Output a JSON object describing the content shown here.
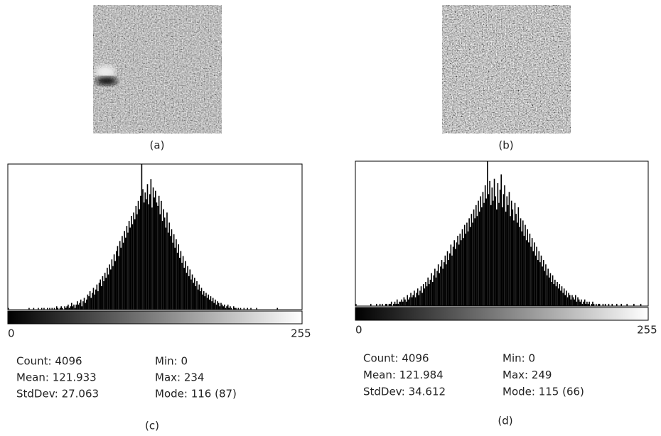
{
  "figure": {
    "images": [
      {
        "caption": "(a)"
      },
      {
        "caption": "(b)"
      }
    ]
  },
  "chart_data": [
    {
      "type": "histogram",
      "caption": "(c)",
      "color": "#000000",
      "xlim": [
        0,
        255
      ],
      "xticks": [
        0,
        255
      ],
      "ylim": [
        0,
        87
      ],
      "values": [
        1,
        0,
        0,
        0,
        0,
        0,
        0,
        0,
        0,
        0,
        0,
        0,
        0,
        0,
        0,
        0,
        0,
        0,
        1,
        0,
        0,
        0,
        1,
        0,
        0,
        0,
        1,
        0,
        0,
        1,
        0,
        1,
        0,
        0,
        1,
        0,
        1,
        0,
        1,
        0,
        1,
        0,
        2,
        1,
        0,
        1,
        2,
        1,
        0,
        2,
        1,
        2,
        3,
        1,
        2,
        4,
        2,
        3,
        1,
        3,
        5,
        3,
        4,
        6,
        2,
        5,
        7,
        4,
        6,
        9,
        8,
        11,
        7,
        10,
        13,
        9,
        12,
        15,
        11,
        16,
        18,
        14,
        20,
        17,
        22,
        19,
        25,
        21,
        27,
        24,
        30,
        26,
        33,
        29,
        35,
        38,
        32,
        41,
        37,
        44,
        40,
        47,
        43,
        50,
        46,
        53,
        49,
        56,
        51,
        58,
        54,
        62,
        57,
        65,
        60,
        68,
        87,
        72,
        64,
        70,
        66,
        75,
        63,
        69,
        78,
        61,
        73,
        67,
        71,
        64,
        62,
        68,
        57,
        65,
        53,
        60,
        55,
        49,
        58,
        46,
        52,
        44,
        48,
        40,
        45,
        37,
        42,
        34,
        39,
        31,
        35,
        28,
        32,
        25,
        29,
        22,
        26,
        20,
        24,
        18,
        21,
        16,
        19,
        14,
        17,
        12,
        15,
        11,
        13,
        9,
        11,
        8,
        10,
        7,
        9,
        6,
        8,
        5,
        7,
        4,
        6,
        3,
        5,
        4,
        2,
        4,
        3,
        2,
        3,
        1,
        2,
        3,
        1,
        2,
        1,
        0,
        2,
        1,
        1,
        0,
        1,
        0,
        1,
        0,
        0,
        1,
        0,
        0,
        1,
        0,
        0,
        1,
        0,
        0,
        0,
        0,
        1,
        0,
        0,
        0,
        0,
        0,
        0,
        0,
        0,
        0,
        0,
        0,
        0,
        0,
        0,
        0,
        0,
        0,
        1,
        0,
        0,
        0,
        0,
        0,
        0,
        0,
        0,
        0,
        0,
        0,
        0,
        0,
        0,
        0,
        0,
        0,
        0,
        0,
        0,
        0
      ],
      "stats": [
        "Count: 4096",
        "Mean: 121.933",
        "StdDev: 27.063",
        "Min: 0",
        "Max: 234",
        "Mode: 116 (87)"
      ]
    },
    {
      "type": "histogram",
      "caption": "(d)",
      "color": "#000000",
      "xlim": [
        0,
        255
      ],
      "xticks": [
        0,
        255
      ],
      "ylim": [
        0,
        66
      ],
      "values": [
        1,
        0,
        0,
        0,
        0,
        0,
        0,
        0,
        0,
        0,
        0,
        0,
        0,
        1,
        0,
        0,
        0,
        0,
        1,
        0,
        0,
        1,
        0,
        1,
        0,
        0,
        1,
        1,
        0,
        1,
        1,
        2,
        0,
        1,
        2,
        1,
        3,
        1,
        2,
        2,
        3,
        2,
        4,
        3,
        2,
        5,
        3,
        4,
        6,
        4,
        5,
        7,
        4,
        6,
        8,
        5,
        7,
        9,
        6,
        10,
        8,
        11,
        9,
        13,
        10,
        12,
        15,
        11,
        14,
        17,
        13,
        16,
        19,
        15,
        18,
        21,
        17,
        20,
        23,
        19,
        25,
        21,
        24,
        28,
        23,
        27,
        30,
        26,
        29,
        32,
        28,
        33,
        30,
        35,
        31,
        37,
        33,
        38,
        34,
        40,
        36,
        42,
        38,
        44,
        40,
        46,
        41,
        48,
        43,
        50,
        45,
        52,
        47,
        55,
        49,
        66,
        51,
        57,
        46,
        54,
        48,
        58,
        50,
        44,
        56,
        47,
        53,
        60,
        45,
        51,
        55,
        43,
        50,
        46,
        52,
        41,
        48,
        44,
        39,
        47,
        42,
        38,
        45,
        36,
        40,
        34,
        39,
        32,
        37,
        30,
        35,
        29,
        33,
        27,
        31,
        25,
        29,
        23,
        27,
        21,
        25,
        20,
        23,
        18,
        21,
        16,
        19,
        14,
        17,
        13,
        15,
        11,
        14,
        10,
        12,
        9,
        11,
        8,
        10,
        7,
        9,
        6,
        8,
        5,
        7,
        4,
        6,
        5,
        3,
        5,
        4,
        3,
        5,
        2,
        4,
        3,
        2,
        3,
        1,
        2,
        3,
        1,
        2,
        1,
        2,
        0,
        1,
        2,
        1,
        0,
        1,
        0,
        1,
        1,
        0,
        0,
        1,
        0,
        1,
        0,
        0,
        1,
        0,
        0,
        1,
        0,
        0,
        0,
        1,
        0,
        0,
        0,
        1,
        0,
        0,
        0,
        0,
        1,
        0,
        0,
        0,
        0,
        0,
        1,
        0,
        0,
        0,
        0,
        0,
        1,
        0,
        0,
        0,
        0,
        0,
        0
      ],
      "stats": [
        "Count: 4096",
        "Mean: 121.984",
        "StdDev: 34.612",
        "Min: 0",
        "Max: 249",
        "Mode: 115 (66)"
      ]
    }
  ]
}
